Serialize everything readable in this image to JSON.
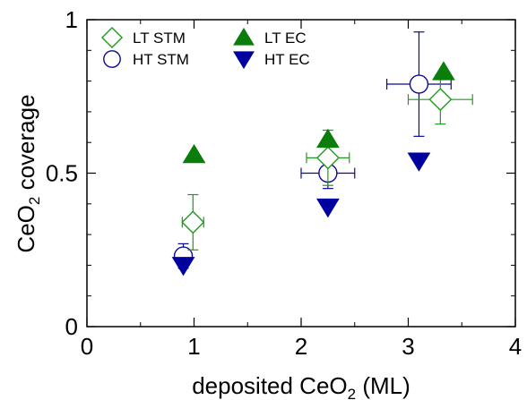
{
  "chart_data": {
    "type": "scatter",
    "xlabel": {
      "main": "deposited CeO",
      "sub": "2",
      "unit": " (ML)"
    },
    "ylabel": {
      "main": "CeO",
      "sub": "2",
      "rest": " coverage"
    },
    "xlim": [
      0,
      4
    ],
    "ylim": [
      0,
      1
    ],
    "x_ticks": [
      0,
      1,
      2,
      3,
      4
    ],
    "x_tick_labels": [
      "0",
      "1",
      "2",
      "3",
      "4"
    ],
    "y_ticks": [
      0,
      0.5,
      1
    ],
    "y_tick_labels": [
      "0",
      "0.5",
      "1"
    ],
    "grid": false,
    "legend_position": "top-left",
    "series": [
      {
        "name": "LT STM",
        "marker": "diamond-open",
        "color": "#1f9a1f",
        "points": [
          {
            "x": 0.99,
            "y": 0.34,
            "xerr": 0.1,
            "yerr": 0.09
          },
          {
            "x": 2.25,
            "y": 0.55,
            "xerr": 0.2,
            "yerr": 0.09
          },
          {
            "x": 3.3,
            "y": 0.74,
            "xerr": 0.3,
            "yerr": 0.08
          }
        ]
      },
      {
        "name": "HT STM",
        "marker": "circle-open",
        "color": "#0a0a9a",
        "points": [
          {
            "x": 0.9,
            "y": 0.23,
            "xerr": 0.05,
            "yerr": 0.04
          },
          {
            "x": 2.25,
            "y": 0.5,
            "xerr": 0.25,
            "yerr": 0.05
          },
          {
            "x": 3.1,
            "y": 0.79,
            "xerr": 0.3,
            "yerr": 0.17
          }
        ]
      },
      {
        "name": "LT EC",
        "marker": "triangle-up-filled",
        "color": "#0b7d0b",
        "points": [
          {
            "x": 1.0,
            "y": 0.56
          },
          {
            "x": 2.25,
            "y": 0.61
          },
          {
            "x": 3.33,
            "y": 0.83
          }
        ]
      },
      {
        "name": "HT EC",
        "marker": "triangle-down-filled",
        "color": "#0000a0",
        "points": [
          {
            "x": 0.9,
            "y": 0.2
          },
          {
            "x": 2.25,
            "y": 0.39
          },
          {
            "x": 3.1,
            "y": 0.54
          }
        ]
      }
    ]
  }
}
